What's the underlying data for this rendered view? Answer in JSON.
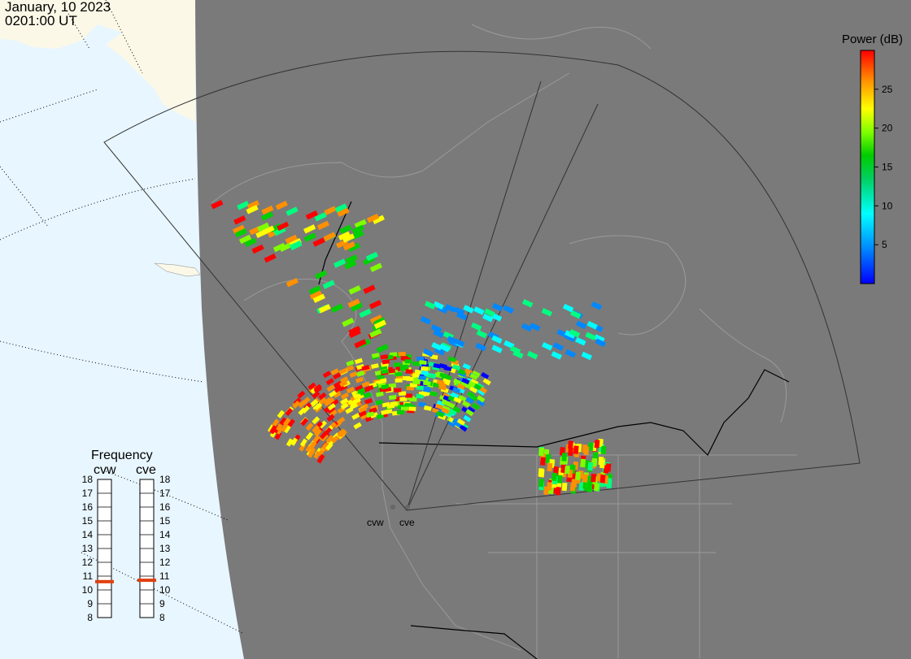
{
  "header": {
    "date": "January, 10 2023",
    "time": "0201:00 UT"
  },
  "colorbar": {
    "title": "Power (dB)",
    "ticks": [
      "5",
      "10",
      "15",
      "20",
      "25"
    ],
    "tick_values": [
      5,
      10,
      15,
      20,
      25
    ],
    "range": [
      0,
      30
    ],
    "colors": [
      "#0000ff",
      "#0088ff",
      "#00ffff",
      "#00ff80",
      "#00d000",
      "#80ff00",
      "#ffff00",
      "#ff9000",
      "#ff0000"
    ]
  },
  "frequency_panel": {
    "title": "Frequency",
    "radars": [
      {
        "label": "cvw",
        "selected_mhz": 10.6
      },
      {
        "label": "cve",
        "selected_mhz": 10.7
      }
    ],
    "scale": [
      "8",
      "9",
      "10",
      "11",
      "12",
      "13",
      "14",
      "15",
      "16",
      "17",
      "18"
    ],
    "scale_values": [
      8,
      9,
      10,
      11,
      12,
      13,
      14,
      15,
      16,
      17,
      18
    ],
    "marker_color": "#e04010"
  },
  "radar_sites": [
    {
      "label": "cvw"
    },
    {
      "label": "cve"
    }
  ],
  "colors": {
    "ocean": "#e8f6ff",
    "land": "#fbf8e8",
    "night": "#7a7a7a",
    "coast": "#9a9a9a",
    "border": "#000000"
  }
}
